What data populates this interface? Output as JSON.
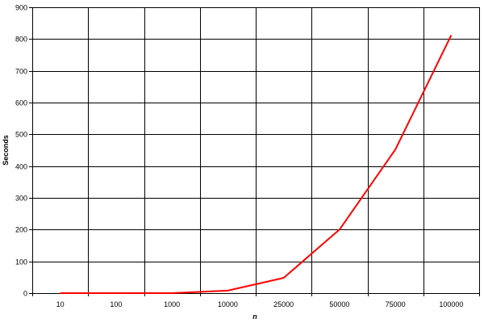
{
  "chart_data": {
    "type": "line",
    "title": "",
    "xlabel": "n",
    "ylabel": "Seconds",
    "categories": [
      "10",
      "100",
      "1000",
      "10000",
      "25000",
      "50000",
      "75000",
      "100000"
    ],
    "yticks": [
      "0",
      "100",
      "200",
      "300",
      "400",
      "500",
      "600",
      "700",
      "800",
      "900"
    ],
    "ylim": [
      0,
      900
    ],
    "grid": true,
    "legend": "none",
    "series": [
      {
        "values": [
          0,
          0,
          0,
          8,
          48,
          200,
          452,
          812
        ],
        "color": "#ff0000"
      }
    ]
  }
}
